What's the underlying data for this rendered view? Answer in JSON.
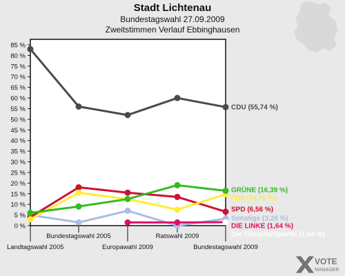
{
  "header": {
    "title": "Stadt Lichtenau",
    "subtitle1": "Bundestagswahl 27.09.2009",
    "subtitle2": "Zweitstimmen Verlauf Ebbinghausen"
  },
  "brand": {
    "line1": "VOTE",
    "line2": "MANAGER"
  },
  "chart_data": {
    "type": "line",
    "categories": [
      "Landtagswahl 2005",
      "Bundestagswahl 2005",
      "Europawahl 2009",
      "Ratswahl 2009",
      "Bundestagswahl 2009"
    ],
    "ylim": [
      0,
      85
    ],
    "yticks": [
      "0 %",
      "5 %",
      "10 %",
      "15 %",
      "20 %",
      "25 %",
      "30 %",
      "35 %",
      "40 %",
      "45 %",
      "50 %",
      "55 %",
      "60 %",
      "65 %",
      "70 %",
      "75 %",
      "80 %",
      "85 %"
    ],
    "grid": false,
    "series": [
      {
        "name": "CDU",
        "label": "CDU (55,74 %)",
        "color": "#4a4a4a",
        "values": [
          83,
          56,
          52,
          60,
          55.74
        ]
      },
      {
        "name": "GRÜNE",
        "label": "GRÜNE (16,39 %)",
        "color": "#33bb22",
        "values": [
          6,
          9,
          12.5,
          19,
          16.39
        ]
      },
      {
        "name": "FDP",
        "label": "FDP (14,75 %)",
        "color": "#ffee33",
        "values": [
          3,
          15.5,
          12.5,
          7.5,
          14.75
        ]
      },
      {
        "name": "SPD",
        "label": "SPD (6,56 %)",
        "color": "#cc1133",
        "values": [
          4,
          18,
          15.5,
          13.5,
          6.56
        ]
      },
      {
        "name": "Sonstige",
        "label": "Sonstige (3,28 %)",
        "color": "#aabbe6",
        "values": [
          5,
          1.5,
          7,
          0,
          3.28
        ]
      },
      {
        "name": "DIE LINKE",
        "label": "DIE LINKE (1,64 %)",
        "color": "#dd1166",
        "values": [
          null,
          null,
          1.5,
          1.5,
          1.64
        ]
      },
      {
        "name": "Die Tierschutzpartei",
        "label": "Die Tierschutzpartei (1,64 %)",
        "color": "#ffffff",
        "values": [
          null,
          null,
          null,
          null,
          1.64
        ]
      }
    ]
  }
}
